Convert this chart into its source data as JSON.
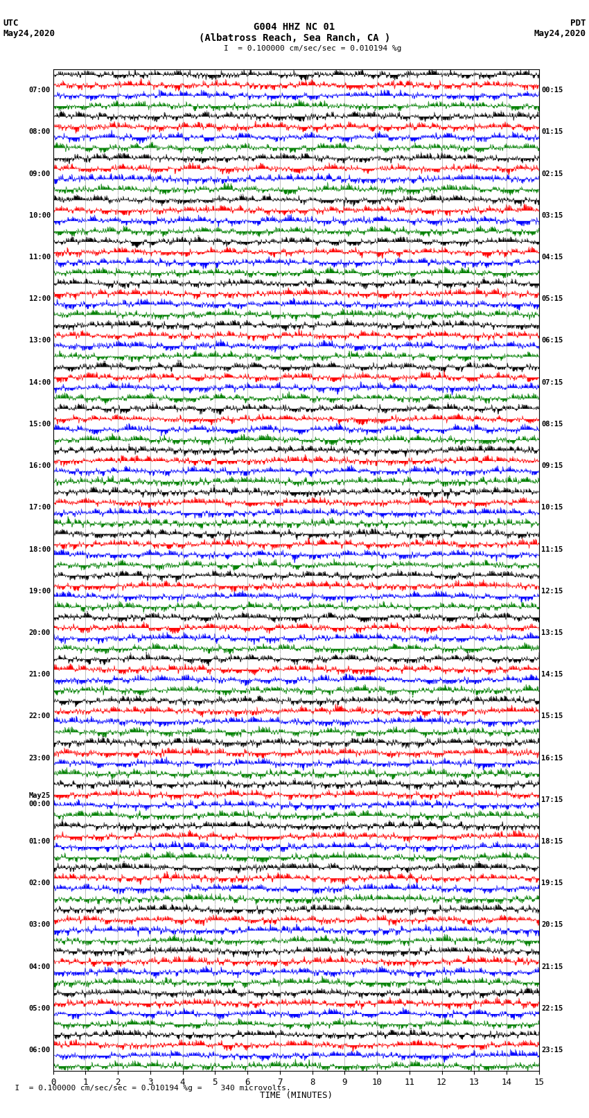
{
  "title_line1": "G004 HHZ NC 01",
  "title_line2": "(Albatross Reach, Sea Ranch, CA )",
  "scale_text": "= 0.100000 cm/sec/sec = 0.010194 %g",
  "bottom_text": "= 0.100000 cm/sec/sec = 0.010194 %g =    340 microvolts.",
  "utc_label": "UTC",
  "utc_date": "May24,2020",
  "pdt_label": "PDT",
  "pdt_date": "May24,2020",
  "xlabel": "TIME (MINUTES)",
  "left_times": [
    "07:00",
    "08:00",
    "09:00",
    "10:00",
    "11:00",
    "12:00",
    "13:00",
    "14:00",
    "15:00",
    "16:00",
    "17:00",
    "18:00",
    "19:00",
    "20:00",
    "21:00",
    "22:00",
    "23:00",
    "May25\n00:00",
    "01:00",
    "02:00",
    "03:00",
    "04:00",
    "05:00",
    "06:00"
  ],
  "right_times": [
    "00:15",
    "01:15",
    "02:15",
    "03:15",
    "04:15",
    "05:15",
    "06:15",
    "07:15",
    "08:15",
    "09:15",
    "10:15",
    "11:15",
    "12:15",
    "13:15",
    "14:15",
    "15:15",
    "16:15",
    "17:15",
    "18:15",
    "19:15",
    "20:15",
    "21:15",
    "22:15",
    "23:15"
  ],
  "colors_cycle": [
    "black",
    "red",
    "blue",
    "green"
  ],
  "n_rows": 24,
  "minutes_per_row": 15,
  "x_ticks": [
    0,
    1,
    2,
    3,
    4,
    5,
    6,
    7,
    8,
    9,
    10,
    11,
    12,
    13,
    14,
    15
  ],
  "background_color": "white",
  "plot_bgcolor": "white"
}
